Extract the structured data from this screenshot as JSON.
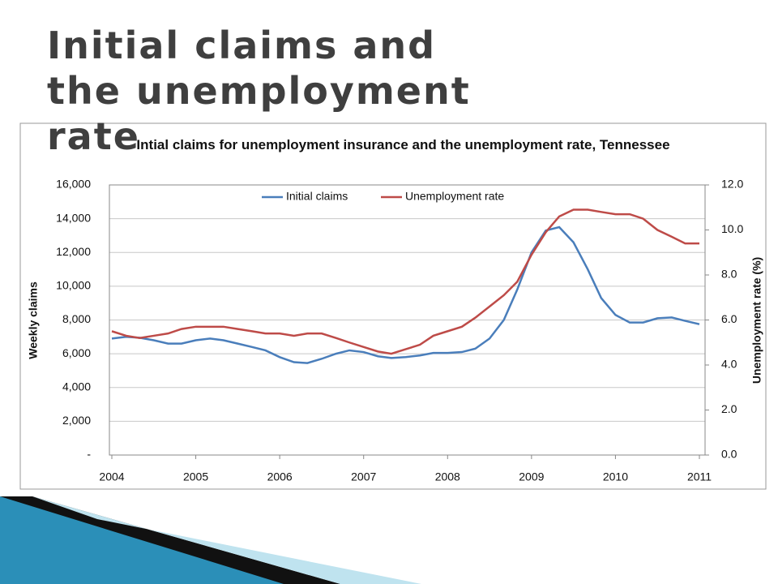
{
  "slide_title": "Initial claims and the unemployment rate",
  "chart_data": {
    "type": "line",
    "title": "Intial claims for unemployment insurance and the unemployment rate, Tennessee",
    "ylabel": "Weekly claims",
    "y2label": "Unemployment rate (%)",
    "x": [
      2004,
      2004.17,
      2004.33,
      2004.5,
      2004.67,
      2004.83,
      2005,
      2005.17,
      2005.33,
      2005.5,
      2005.67,
      2005.83,
      2006,
      2006.17,
      2006.33,
      2006.5,
      2006.67,
      2006.83,
      2007,
      2007.17,
      2007.33,
      2007.5,
      2007.67,
      2007.83,
      2008,
      2008.17,
      2008.33,
      2008.5,
      2008.67,
      2008.83,
      2009,
      2009.17,
      2009.33,
      2009.5,
      2009.67,
      2009.83,
      2010,
      2010.17,
      2010.33,
      2010.5,
      2010.67,
      2010.83,
      2011
    ],
    "xlim": [
      2004,
      2011
    ],
    "xticks": [
      2004,
      2005,
      2006,
      2007,
      2008,
      2009,
      2010,
      2011
    ],
    "ylim": [
      0,
      16000
    ],
    "yticks": [
      {
        "value": 0,
        "label": "-"
      },
      {
        "value": 2000,
        "label": "2,000"
      },
      {
        "value": 4000,
        "label": "4,000"
      },
      {
        "value": 6000,
        "label": "6,000"
      },
      {
        "value": 8000,
        "label": "8,000"
      },
      {
        "value": 10000,
        "label": "10,000"
      },
      {
        "value": 12000,
        "label": "12,000"
      },
      {
        "value": 14000,
        "label": "14,000"
      },
      {
        "value": 16000,
        "label": "16,000"
      }
    ],
    "y2lim": [
      0,
      12
    ],
    "y2ticks": [
      {
        "value": 0,
        "label": "0.0"
      },
      {
        "value": 2,
        "label": "2.0"
      },
      {
        "value": 4,
        "label": "4.0"
      },
      {
        "value": 6,
        "label": "6.0"
      },
      {
        "value": 8,
        "label": "8.0"
      },
      {
        "value": 10,
        "label": "10.0"
      },
      {
        "value": 12,
        "label": "12.0"
      }
    ],
    "grid": true,
    "series": [
      {
        "name": "Initial claims",
        "color": "#4a7ebb",
        "values": [
          6900,
          7000,
          6950,
          6800,
          6600,
          6600,
          6800,
          6900,
          6800,
          6600,
          6400,
          6200,
          5800,
          5500,
          5450,
          5700,
          6000,
          6200,
          6100,
          5850,
          5750,
          5800,
          5900,
          6050,
          6050,
          6100,
          6300,
          6900,
          8000,
          9800,
          12000,
          13300,
          13500,
          12600,
          11000,
          9300,
          8300,
          7850,
          7850,
          8100,
          8150,
          7950,
          7750
        ]
      },
      {
        "name": "Unemployment rate",
        "color": "#be4b48",
        "axis": "y2",
        "values": [
          5.5,
          5.3,
          5.2,
          5.3,
          5.4,
          5.6,
          5.7,
          5.7,
          5.7,
          5.6,
          5.5,
          5.4,
          5.4,
          5.3,
          5.4,
          5.4,
          5.2,
          5.0,
          4.8,
          4.6,
          4.5,
          4.7,
          4.9,
          5.3,
          5.5,
          5.7,
          6.1,
          6.6,
          7.1,
          7.7,
          8.9,
          9.9,
          10.6,
          10.9,
          10.9,
          10.8,
          10.7,
          10.7,
          10.5,
          10.0,
          9.7,
          9.4,
          9.4
        ]
      }
    ]
  }
}
